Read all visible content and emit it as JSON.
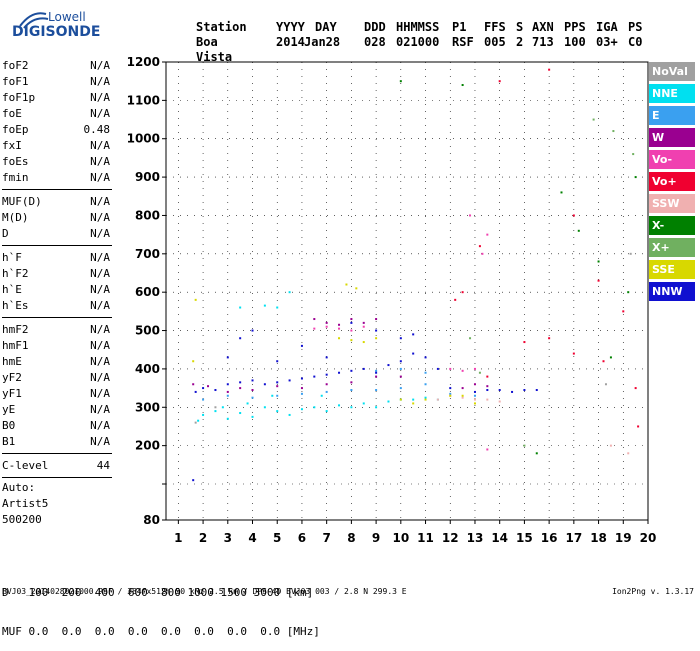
{
  "logo": {
    "top": "Lowell",
    "main": "DIGISONDE"
  },
  "header": {
    "labels": [
      "Station",
      "YYYY",
      "DAY",
      "DDD",
      "HHMMSS",
      "P1",
      "FFS",
      "S",
      "AXN",
      "PPS",
      "IGA",
      "PS"
    ],
    "values": [
      "Boa Vista",
      "2014",
      "Jan28",
      "028",
      "021000",
      "RSF",
      "005",
      "2",
      "713",
      "100",
      "03+",
      "C0"
    ]
  },
  "params": [
    {
      "name": "foF2",
      "value": "N/A"
    },
    {
      "name": "foF1",
      "value": "N/A"
    },
    {
      "name": "foF1p",
      "value": "N/A"
    },
    {
      "name": "foE",
      "value": "N/A"
    },
    {
      "name": "foEp",
      "value": "0.48"
    },
    {
      "name": "fxI",
      "value": "N/A"
    },
    {
      "name": "foEs",
      "value": "N/A"
    },
    {
      "name": "fmin",
      "value": "N/A"
    },
    {
      "sep": true
    },
    {
      "name": "MUF(D)",
      "value": "N/A"
    },
    {
      "name": "M(D)",
      "value": "N/A"
    },
    {
      "name": "D",
      "value": "N/A"
    },
    {
      "sep": true
    },
    {
      "name": "h`F",
      "value": "N/A"
    },
    {
      "name": "h`F2",
      "value": "N/A"
    },
    {
      "name": "h`E",
      "value": "N/A"
    },
    {
      "name": "h`Es",
      "value": "N/A"
    },
    {
      "sep": true
    },
    {
      "name": "hmF2",
      "value": "N/A"
    },
    {
      "name": "hmF1",
      "value": "N/A"
    },
    {
      "name": "hmE",
      "value": "N/A"
    },
    {
      "name": "yF2",
      "value": "N/A"
    },
    {
      "name": "yF1",
      "value": "N/A"
    },
    {
      "name": "yE",
      "value": "N/A"
    },
    {
      "name": "B0",
      "value": "N/A"
    },
    {
      "name": "B1",
      "value": "N/A"
    },
    {
      "sep": true
    },
    {
      "name": "C-level",
      "value": "44"
    },
    {
      "sep": true
    }
  ],
  "auto": [
    "Auto:",
    "Artist5",
    "500200"
  ],
  "bottom": {
    "d_label": "D",
    "d_values": "100  200  400  600  800 1000 1500 3000 [km]",
    "muf_label": "MUF",
    "muf_values": "0.0  0.0  0.0  0.0  0.0  0.0  0.0  0.0 [MHz]"
  },
  "footer": {
    "left": "BVJ03_2014028021000.RSF / 384fx512h 50 kHz 2.5 km / DPS-4D BVJ03 003 / 2.8 N 299.3 E",
    "right": "Ion2Png v. 1.3.17"
  },
  "legend": [
    {
      "label": "NoVal",
      "color": "#a0a0a0"
    },
    {
      "label": "NNE",
      "color": "#00e0f0"
    },
    {
      "label": "E",
      "color": "#3aa0f0"
    },
    {
      "label": "W",
      "color": "#9a0090"
    },
    {
      "label": "Vo-",
      "color": "#f040b0"
    },
    {
      "label": "Vo+",
      "color": "#f00030"
    },
    {
      "label": "SSW",
      "color": "#f0b0b0"
    },
    {
      "label": "X-",
      "color": "#008000"
    },
    {
      "label": "X+",
      "color": "#70b060"
    },
    {
      "label": "SSE",
      "color": "#d8d800"
    },
    {
      "label": "NNW",
      "color": "#1010d0"
    }
  ],
  "chart_data": {
    "type": "scatter",
    "xlabel": "",
    "ylabel": "",
    "xlim": [
      0.5,
      20
    ],
    "ylim": [
      80,
      1200
    ],
    "x_ticks": [
      1,
      2,
      3,
      4,
      5,
      6,
      7,
      8,
      9,
      10,
      11,
      12,
      13,
      14,
      15,
      16,
      17,
      18,
      19,
      20
    ],
    "y_ticks": [
      80,
      100,
      200,
      300,
      400,
      500,
      600,
      700,
      800,
      900,
      1000,
      1100,
      1200
    ],
    "y_tick_labels": [
      "80",
      "",
      "200",
      "300",
      "400",
      "500",
      "600",
      "700",
      "800",
      "900",
      "1000",
      "1100",
      "1200"
    ],
    "grid": "dotted",
    "legend_placement": "right",
    "series": [
      {
        "name": "NNE",
        "color": "#00e0f0",
        "points": [
          [
            1.8,
            265
          ],
          [
            2,
            280
          ],
          [
            2.5,
            290
          ],
          [
            3,
            270
          ],
          [
            3.5,
            285
          ],
          [
            4,
            275
          ],
          [
            4.5,
            300
          ],
          [
            5,
            290
          ],
          [
            5.5,
            280
          ],
          [
            6,
            295
          ],
          [
            6.5,
            300
          ],
          [
            7,
            290
          ],
          [
            7.5,
            305
          ],
          [
            8,
            300
          ],
          [
            8.5,
            310
          ],
          [
            9,
            300
          ],
          [
            9.5,
            315
          ],
          [
            10,
            320
          ],
          [
            10.5,
            320
          ],
          [
            11,
            325
          ],
          [
            11.5,
            320
          ],
          [
            3.5,
            560
          ],
          [
            4.5,
            565
          ],
          [
            5,
            560
          ],
          [
            5.5,
            600
          ],
          [
            2.8,
            300
          ],
          [
            3.8,
            310
          ],
          [
            4.8,
            330
          ],
          [
            6.8,
            330
          ]
        ]
      },
      {
        "name": "E",
        "color": "#3aa0f0",
        "points": [
          [
            2,
            320
          ],
          [
            3,
            330
          ],
          [
            4,
            325
          ],
          [
            5,
            330
          ],
          [
            6,
            335
          ],
          [
            7,
            340
          ],
          [
            8,
            345
          ],
          [
            9,
            345
          ],
          [
            10,
            350
          ],
          [
            11,
            360
          ],
          [
            12,
            335
          ],
          [
            13,
            330
          ],
          [
            11,
            390
          ],
          [
            10,
            400
          ],
          [
            9,
            395
          ]
        ]
      },
      {
        "name": "NNW",
        "color": "#1010d0",
        "points": [
          [
            1.7,
            340
          ],
          [
            2,
            350
          ],
          [
            2.5,
            345
          ],
          [
            3,
            360
          ],
          [
            3.5,
            365
          ],
          [
            4,
            370
          ],
          [
            4.5,
            360
          ],
          [
            5,
            365
          ],
          [
            5.5,
            370
          ],
          [
            6,
            375
          ],
          [
            6.5,
            380
          ],
          [
            7,
            385
          ],
          [
            7.5,
            390
          ],
          [
            8,
            395
          ],
          [
            8.5,
            400
          ],
          [
            9,
            390
          ],
          [
            9.5,
            410
          ],
          [
            10,
            420
          ],
          [
            10.5,
            440
          ],
          [
            11,
            430
          ],
          [
            11.5,
            400
          ],
          [
            12,
            350
          ],
          [
            13,
            340
          ],
          [
            13.5,
            345
          ],
          [
            14,
            345
          ],
          [
            14.5,
            340
          ],
          [
            15,
            345
          ],
          [
            15.5,
            345
          ],
          [
            1.6,
            110
          ],
          [
            3,
            430
          ],
          [
            3.5,
            480
          ],
          [
            4,
            500
          ],
          [
            5,
            420
          ],
          [
            6,
            460
          ],
          [
            7,
            430
          ],
          [
            8,
            520
          ],
          [
            9,
            500
          ],
          [
            10,
            480
          ],
          [
            10.5,
            490
          ]
        ]
      },
      {
        "name": "W",
        "color": "#9a0090",
        "points": [
          [
            1.6,
            360
          ],
          [
            2.2,
            355
          ],
          [
            3,
            340
          ],
          [
            3.5,
            350
          ],
          [
            4,
            345
          ],
          [
            5,
            355
          ],
          [
            6,
            350
          ],
          [
            7,
            360
          ],
          [
            8,
            365
          ],
          [
            9,
            380
          ],
          [
            10,
            380
          ],
          [
            12.5,
            350
          ],
          [
            13,
            360
          ],
          [
            13.5,
            355
          ],
          [
            6.5,
            530
          ],
          [
            7,
            520
          ],
          [
            7.5,
            515
          ],
          [
            8,
            530
          ],
          [
            8.5,
            520
          ],
          [
            9,
            530
          ]
        ]
      },
      {
        "name": "Vo-",
        "color": "#f040b0",
        "points": [
          [
            6.5,
            505
          ],
          [
            7,
            510
          ],
          [
            7.5,
            505
          ],
          [
            8,
            500
          ],
          [
            8.5,
            510
          ],
          [
            12,
            400
          ],
          [
            12.5,
            395
          ],
          [
            13,
            400
          ],
          [
            13.3,
            700
          ],
          [
            13.5,
            750
          ],
          [
            12.8,
            800
          ],
          [
            13.5,
            190
          ]
        ]
      },
      {
        "name": "Vo+",
        "color": "#f00030",
        "points": [
          [
            12.2,
            580
          ],
          [
            12.5,
            600
          ],
          [
            13.2,
            720
          ],
          [
            13.5,
            380
          ],
          [
            15,
            470
          ],
          [
            16,
            480
          ],
          [
            17,
            440
          ],
          [
            18,
            630
          ],
          [
            19,
            550
          ],
          [
            19.5,
            350
          ],
          [
            14,
            1150
          ],
          [
            16,
            1180
          ],
          [
            17,
            800
          ],
          [
            18.2,
            420
          ],
          [
            19.6,
            250
          ]
        ]
      },
      {
        "name": "SSW",
        "color": "#f0b0b0",
        "points": [
          [
            12,
            330
          ],
          [
            12.5,
            325
          ],
          [
            13,
            320
          ],
          [
            13.5,
            320
          ],
          [
            14,
            315
          ],
          [
            11.5,
            320
          ],
          [
            18.5,
            200
          ],
          [
            19.2,
            180
          ]
        ]
      },
      {
        "name": "X-",
        "color": "#008000",
        "points": [
          [
            18,
            680
          ],
          [
            19.2,
            600
          ],
          [
            19.5,
            900
          ],
          [
            16.5,
            860
          ],
          [
            17.2,
            760
          ],
          [
            15.5,
            180
          ],
          [
            18.5,
            430
          ],
          [
            12.5,
            1140
          ],
          [
            10,
            1150
          ]
        ]
      },
      {
        "name": "X+",
        "color": "#70b060",
        "points": [
          [
            19.4,
            960
          ],
          [
            18.6,
            1020
          ],
          [
            17.8,
            1050
          ],
          [
            12.8,
            480
          ],
          [
            13.2,
            390
          ],
          [
            15,
            200
          ]
        ]
      },
      {
        "name": "SSE",
        "color": "#d8d800",
        "points": [
          [
            7.5,
            480
          ],
          [
            8,
            475
          ],
          [
            8.5,
            470
          ],
          [
            9,
            480
          ],
          [
            7.8,
            620
          ],
          [
            8.2,
            610
          ],
          [
            10,
            320
          ],
          [
            10.5,
            310
          ],
          [
            11,
            320
          ],
          [
            12,
            330
          ],
          [
            12.5,
            330
          ],
          [
            13,
            310
          ],
          [
            1.6,
            420
          ],
          [
            1.7,
            580
          ]
        ]
      },
      {
        "name": "NoVal",
        "color": "#a0a0a0",
        "points": [
          [
            1.7,
            260
          ],
          [
            2.5,
            300
          ],
          [
            18.3,
            360
          ],
          [
            19.3,
            700
          ]
        ]
      }
    ]
  }
}
